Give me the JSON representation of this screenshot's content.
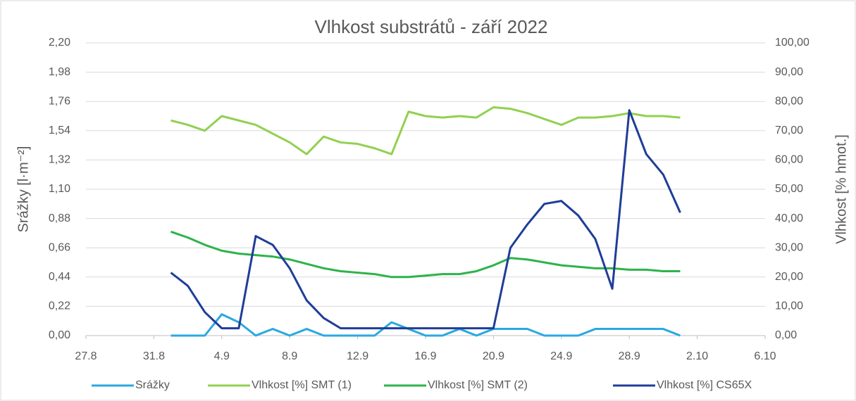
{
  "chart_data": {
    "type": "line",
    "title": "Vlhkost substrátů - září 2022",
    "y_label": "Srážky [l·m⁻²]",
    "y2_label": "Vlhkost [% hmot.]",
    "x": [
      44805,
      44806,
      44807,
      44808,
      44809,
      44810,
      44811,
      44812,
      44813,
      44814,
      44815,
      44816,
      44817,
      44818,
      44819,
      44820,
      44821,
      44822,
      44823,
      44824,
      44825,
      44826,
      44827,
      44828,
      44829,
      44830,
      44831,
      44832,
      44833,
      44834,
      44835
    ],
    "xlim": [
      44800,
      44840
    ],
    "xticks": [
      {
        "value": 44800,
        "label": "27.8"
      },
      {
        "value": 44804,
        "label": "31.8"
      },
      {
        "value": 44808,
        "label": "4.9"
      },
      {
        "value": 44812,
        "label": "8.9"
      },
      {
        "value": 44816,
        "label": "12.9"
      },
      {
        "value": 44820,
        "label": "16.9"
      },
      {
        "value": 44824,
        "label": "20.9"
      },
      {
        "value": 44828,
        "label": "24.9"
      },
      {
        "value": 44832,
        "label": "28.9"
      },
      {
        "value": 44836,
        "label": "2.10"
      },
      {
        "value": 44840,
        "label": "6.10"
      }
    ],
    "ylim": [
      0,
      2.2
    ],
    "yticks": [
      {
        "value": 0,
        "label": "0,00"
      },
      {
        "value": 0.22,
        "label": "0,22"
      },
      {
        "value": 0.44,
        "label": "0,44"
      },
      {
        "value": 0.66,
        "label": "0,66"
      },
      {
        "value": 0.88,
        "label": "0,88"
      },
      {
        "value": 1.1,
        "label": "1,10"
      },
      {
        "value": 1.32,
        "label": "1,32"
      },
      {
        "value": 1.54,
        "label": "1,54"
      },
      {
        "value": 1.76,
        "label": "1,76"
      },
      {
        "value": 1.98,
        "label": "1,98"
      },
      {
        "value": 2.2,
        "label": "2,20"
      }
    ],
    "y2lim": [
      0,
      100
    ],
    "y2ticks": [
      {
        "value": 0,
        "label": "0,00"
      },
      {
        "value": 10,
        "label": "10,00"
      },
      {
        "value": 20,
        "label": "20,00"
      },
      {
        "value": 30,
        "label": "30,00"
      },
      {
        "value": 40,
        "label": "40,00"
      },
      {
        "value": 50,
        "label": "50,00"
      },
      {
        "value": 60,
        "label": "60,00"
      },
      {
        "value": 70,
        "label": "70,00"
      },
      {
        "value": 80,
        "label": "80,00"
      },
      {
        "value": 90,
        "label": "90,00"
      },
      {
        "value": 100,
        "label": "100,00"
      }
    ],
    "grid": true,
    "legend": "bottom",
    "series": [
      {
        "name": "Srážky",
        "color": "#29a9e0",
        "axis": "y",
        "values": [
          0,
          0,
          0,
          0.16,
          0.1,
          0,
          0.05,
          0,
          0.05,
          0,
          0,
          0,
          0,
          0.1,
          0.05,
          0,
          0,
          0.05,
          0,
          0.05,
          0.05,
          0.05,
          0,
          0,
          0,
          0.05,
          0.05,
          0.05,
          0.05,
          0.05,
          0
        ]
      },
      {
        "name": "Vlhkost [%] SMT (1)",
        "color": "#92d050",
        "axis": "y2",
        "values": [
          73.5,
          72,
          70,
          75,
          73.5,
          72,
          69,
          66,
          62,
          68,
          66,
          65.5,
          64,
          62,
          76.5,
          75,
          74.5,
          75,
          74.5,
          78,
          77.5,
          76,
          74,
          72,
          74.5,
          74.5,
          75,
          76,
          75,
          75,
          74.5
        ]
      },
      {
        "name": "Vlhkost [%] SMT (2)",
        "color": "#2db34a",
        "axis": "y2",
        "values": [
          35.5,
          33.5,
          31,
          29,
          28,
          27.5,
          27,
          26,
          24.5,
          23,
          22,
          21.5,
          21,
          20,
          20,
          20.5,
          21,
          21,
          22,
          24,
          26.5,
          26,
          25,
          24,
          23.5,
          23,
          23,
          22.5,
          22.5,
          22,
          22
        ]
      },
      {
        "name": "Vlhkost [%] CS65X",
        "color": "#1f3d99",
        "axis": "y2",
        "values": [
          21.5,
          17,
          8,
          2.5,
          2.5,
          34,
          31,
          23,
          12,
          6,
          2.5,
          2.5,
          2.5,
          2.5,
          2.5,
          2.5,
          2.5,
          2.5,
          2.5,
          2.5,
          30,
          38,
          45,
          46,
          41,
          33,
          16,
          77,
          62,
          55,
          42
        ]
      }
    ]
  }
}
